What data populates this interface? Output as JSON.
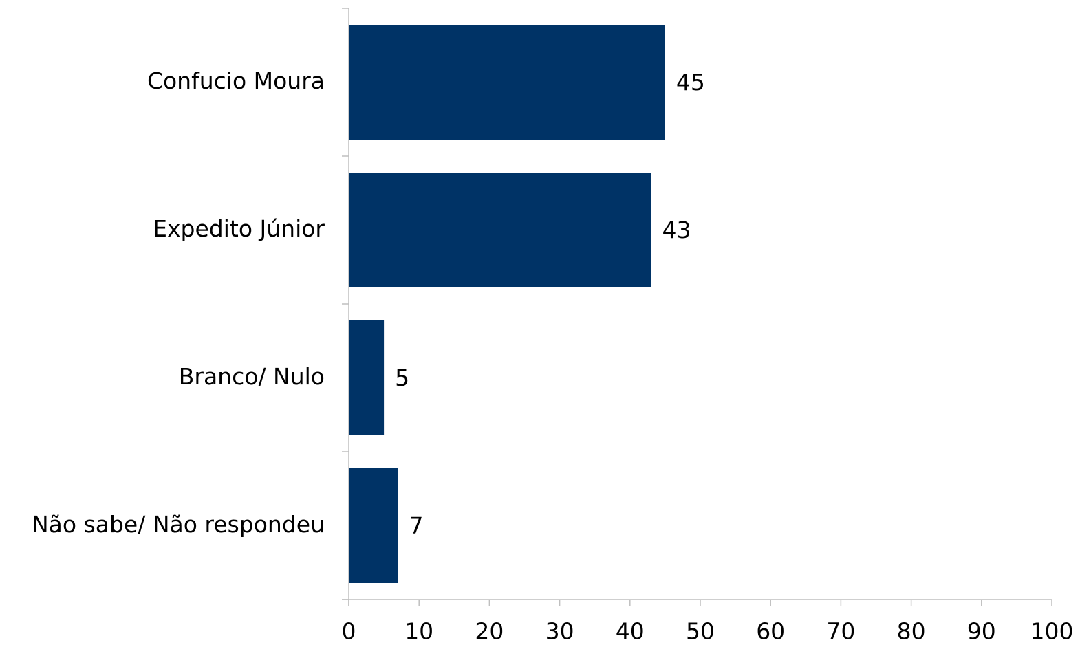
{
  "chart_data": {
    "type": "bar",
    "orientation": "horizontal",
    "title": "",
    "xlabel": "",
    "ylabel": "",
    "categories": [
      "Confucio Moura",
      "Expedito Júnior",
      "Branco/ Nulo",
      "Não sabe/ Não respondeu"
    ],
    "values": [
      45,
      43,
      5,
      7
    ],
    "data_labels": [
      "45",
      "43",
      "5",
      "7"
    ],
    "xlim": [
      0,
      100
    ],
    "x_ticks": [
      0,
      10,
      20,
      30,
      40,
      50,
      60,
      70,
      80,
      90,
      100
    ],
    "x_tick_labels": [
      "0",
      "10",
      "20",
      "30",
      "40",
      "50",
      "60",
      "70",
      "80",
      "90",
      "100"
    ],
    "grid": false,
    "legend": "none",
    "bar_color": "#003366"
  }
}
